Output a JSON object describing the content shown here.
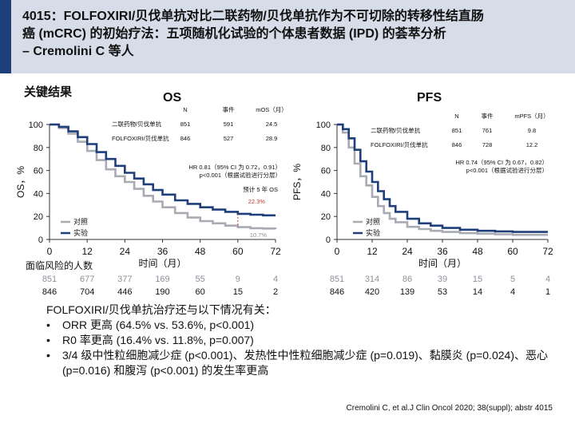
{
  "title": {
    "line1": "4015：FOLFOXIRI/贝伐单抗对比二联药物/贝伐单抗作为不可切除的转移性结直肠",
    "line2": "癌 (mCRC) 的初始疗法：五项随机化试验的个体患者数据 (IPD) 的荟萃分析",
    "line3": "– Cremolini C 等人"
  },
  "key_results_label": "关键结果",
  "colors": {
    "header_bg": "#d6dce8",
    "header_bar": "#1f3f7a",
    "control": "#a8abb3",
    "experimental": "#1f3f7a"
  },
  "chart_data": [
    {
      "type": "line",
      "title": "OS",
      "ylabel": "OS，%",
      "xlabel": "时间（月）",
      "ylim": [
        0,
        100
      ],
      "xlim": [
        0,
        72
      ],
      "yticks": [
        "0",
        "20",
        "40",
        "60",
        "80",
        "100"
      ],
      "xticks": [
        "0",
        "12",
        "24",
        "36",
        "48",
        "60",
        "72"
      ],
      "table_header": [
        "N",
        "事件",
        "mOS（月）"
      ],
      "table_rows": [
        {
          "label": "二联药物/贝伐单抗",
          "n": "851",
          "events": "591",
          "median": "24.5"
        },
        {
          "label": "FOLFOXIRI/贝伐单抗",
          "n": "846",
          "events": "527",
          "median": "28.9"
        }
      ],
      "hr_text_line1": "HR 0.81（95% CI 为 0.72，0.91）",
      "hr_text_line2": "p<0.001（根据试验进行分层）",
      "annot_5yr": "预计 5 年 OS",
      "annot_exp": "22.3%",
      "annot_ctrl": "10.7%",
      "legend": [
        "对照",
        "实验"
      ],
      "series": [
        {
          "name": "对照",
          "x": [
            0,
            3,
            6,
            9,
            12,
            15,
            18,
            21,
            24,
            27,
            30,
            33,
            36,
            40,
            44,
            48,
            52,
            56,
            60,
            64,
            68,
            72
          ],
          "y": [
            100,
            97,
            92,
            85,
            77,
            69,
            61,
            55,
            50,
            44,
            38,
            33,
            28,
            23,
            19,
            16,
            14,
            12,
            10.7,
            9.8,
            9.5,
            9.2
          ]
        },
        {
          "name": "实验",
          "x": [
            0,
            3,
            6,
            9,
            12,
            15,
            18,
            21,
            24,
            27,
            30,
            33,
            36,
            40,
            44,
            48,
            52,
            56,
            60,
            64,
            68,
            72
          ],
          "y": [
            100,
            98,
            94,
            89,
            83,
            76,
            70,
            64,
            58,
            53,
            48,
            43,
            39,
            34,
            31,
            28,
            26,
            24,
            22.3,
            21.5,
            21,
            21
          ]
        }
      ],
      "at_risk_label": "面临风险的人数",
      "at_risk": [
        {
          "name": "对照",
          "values": [
            "851",
            "677",
            "377",
            "169",
            "55",
            "9",
            "4"
          ]
        },
        {
          "name": "实验",
          "values": [
            "846",
            "704",
            "446",
            "190",
            "60",
            "15",
            "2"
          ]
        }
      ]
    },
    {
      "type": "line",
      "title": "PFS",
      "ylabel": "PFS，%",
      "xlabel": "时间（月）",
      "ylim": [
        0,
        100
      ],
      "xlim": [
        0,
        72
      ],
      "yticks": [
        "0",
        "20",
        "40",
        "60",
        "80",
        "100"
      ],
      "xticks": [
        "0",
        "12",
        "24",
        "36",
        "48",
        "60",
        "72"
      ],
      "table_header": [
        "N",
        "事件",
        "mPFS（月）"
      ],
      "table_rows": [
        {
          "label": "二联药物/贝伐单抗",
          "n": "851",
          "events": "761",
          "median": "9.8"
        },
        {
          "label": "FOLFOXIRI/贝伐单抗",
          "n": "846",
          "events": "728",
          "median": "12.2"
        }
      ],
      "hr_text_line1": "HR 0.74（95% CI 为 0.67，0.82）",
      "hr_text_line2": "p<0.001（根据试验进行分层）",
      "legend": [
        "对照",
        "实验"
      ],
      "series": [
        {
          "name": "对照",
          "x": [
            0,
            2,
            4,
            6,
            8,
            10,
            12,
            14,
            16,
            18,
            20,
            24,
            28,
            32,
            36,
            42,
            48,
            54,
            60,
            66,
            72
          ],
          "y": [
            100,
            93,
            80,
            66,
            55,
            47,
            37,
            29,
            23,
            18,
            15,
            11,
            9,
            7.5,
            6.5,
            5.5,
            5,
            4.5,
            4,
            4,
            4
          ]
        },
        {
          "name": "实验",
          "x": [
            0,
            2,
            4,
            6,
            8,
            10,
            12,
            14,
            16,
            18,
            20,
            24,
            28,
            32,
            36,
            42,
            48,
            54,
            60,
            66,
            72
          ],
          "y": [
            100,
            96,
            88,
            78,
            68,
            59,
            50,
            42,
            35,
            29,
            24,
            18,
            14,
            12,
            10,
            8.5,
            7.5,
            7,
            6.5,
            6.5,
            6.5
          ]
        }
      ],
      "at_risk": [
        {
          "name": "对照",
          "values": [
            "851",
            "314",
            "86",
            "39",
            "15",
            "5",
            "4"
          ]
        },
        {
          "name": "实验",
          "values": [
            "846",
            "420",
            "139",
            "53",
            "14",
            "4",
            "1"
          ]
        }
      ]
    }
  ],
  "summary": {
    "lead": "FOLFOXIRI/贝伐单抗治疗还与以下情况有关：",
    "bullets": [
      "ORR 更高 (64.5% vs. 53.6%, p<0.001)",
      "R0 率更高 (16.4% vs. 11.8%, p=0.007)",
      "3/4 级中性粒细胞减少症 (p<0.001)、发热性中性粒细胞减少症 (p=0.019)、黏膜炎 (p=0.024)、恶心 (p=0.016) 和腹泻 (p<0.001) 的发生率更高"
    ]
  },
  "citation": "Cremolini C, et al.J Clin Oncol 2020; 38(suppl); abstr 4015"
}
